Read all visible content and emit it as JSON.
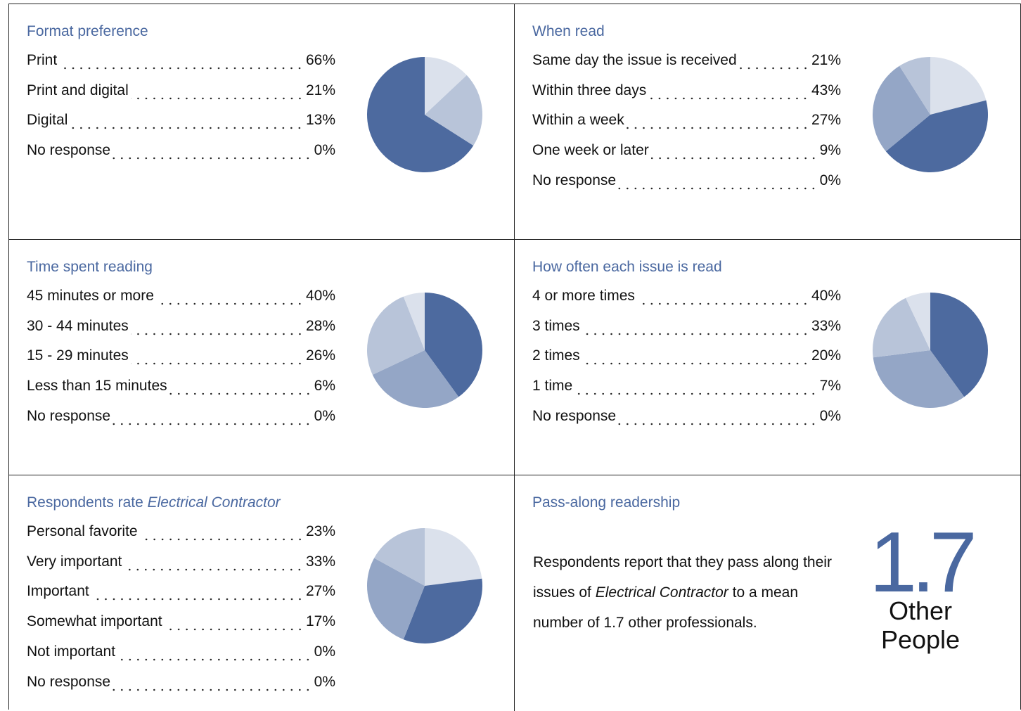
{
  "panels": [
    {
      "title": "Format preference",
      "clockwise": false,
      "items": [
        {
          "label": "Print",
          "value": 66,
          "value_label": "66%",
          "color": "#4d6a9f"
        },
        {
          "label": "Print and digital",
          "value": 21,
          "value_label": "21%",
          "color": "#b8c4d9"
        },
        {
          "label": "Digital",
          "value": 13,
          "value_label": "13%",
          "color": "#dbe1ec"
        },
        {
          "label": "No response",
          "value": 0,
          "value_label": "0%",
          "color": "#eef1f6"
        }
      ]
    },
    {
      "title": "When read",
      "clockwise": true,
      "items": [
        {
          "label": "Same day the issue is received",
          "value": 21,
          "value_label": "21%",
          "color": "#dbe1ec"
        },
        {
          "label": "Within three days",
          "value": 43,
          "value_label": "43%",
          "color": "#4d6a9f"
        },
        {
          "label": "Within a week",
          "value": 27,
          "value_label": "27%",
          "color": "#94a6c6"
        },
        {
          "label": "One week or later",
          "value": 9,
          "value_label": "9%",
          "color": "#b8c4d9"
        },
        {
          "label": "No response",
          "value": 0,
          "value_label": "0%",
          "color": "#eef1f6"
        }
      ]
    },
    {
      "title": "Time spent reading",
      "clockwise": true,
      "items": [
        {
          "label": "45 minutes or more",
          "value": 40,
          "value_label": "40%",
          "color": "#4d6a9f"
        },
        {
          "label": "30 - 44 minutes",
          "value": 28,
          "value_label": "28%",
          "color": "#94a6c6"
        },
        {
          "label": "15 - 29 minutes",
          "value": 26,
          "value_label": "26%",
          "color": "#b8c4d9"
        },
        {
          "label": "Less than 15 minutes",
          "value": 6,
          "value_label": "6%",
          "color": "#dbe1ec"
        },
        {
          "label": "No response",
          "value": 0,
          "value_label": "0%",
          "color": "#eef1f6"
        }
      ]
    },
    {
      "title": "How often each issue is read",
      "clockwise": true,
      "items": [
        {
          "label": "4 or more times",
          "value": 40,
          "value_label": "40%",
          "color": "#4d6a9f"
        },
        {
          "label": "3 times",
          "value": 33,
          "value_label": "33%",
          "color": "#94a6c6"
        },
        {
          "label": "2 times",
          "value": 20,
          "value_label": "20%",
          "color": "#b8c4d9"
        },
        {
          "label": "1 time",
          "value": 7,
          "value_label": "7%",
          "color": "#dbe1ec"
        },
        {
          "label": "No response",
          "value": 0,
          "value_label": "0%",
          "color": "#eef1f6"
        }
      ]
    },
    {
      "title": "Respondents rate ",
      "title_italic": "Electrical Contractor",
      "clockwise": true,
      "items": [
        {
          "label": "Personal favorite",
          "value": 23,
          "value_label": "23%",
          "color": "#dbe1ec"
        },
        {
          "label": "Very important",
          "value": 33,
          "value_label": "33%",
          "color": "#4d6a9f"
        },
        {
          "label": "Important",
          "value": 27,
          "value_label": "27%",
          "color": "#94a6c6"
        },
        {
          "label": "Somewhat important",
          "value": 17,
          "value_label": "17%",
          "color": "#b8c4d9"
        },
        {
          "label": "Not important",
          "value": 0,
          "value_label": "0%",
          "color": "#eef1f6"
        },
        {
          "label": "No response",
          "value": 0,
          "value_label": "0%",
          "color": "#eef1f6"
        }
      ]
    },
    {
      "title": "Pass-along readership",
      "body_before": "Respondents report that they pass along their issues of ",
      "body_italic": "Electrical Contractor",
      "body_after": " to a mean number of 1.7 other professionals.",
      "stat": 1.7,
      "stat_caption": [
        "Other",
        "People"
      ]
    }
  ]
}
